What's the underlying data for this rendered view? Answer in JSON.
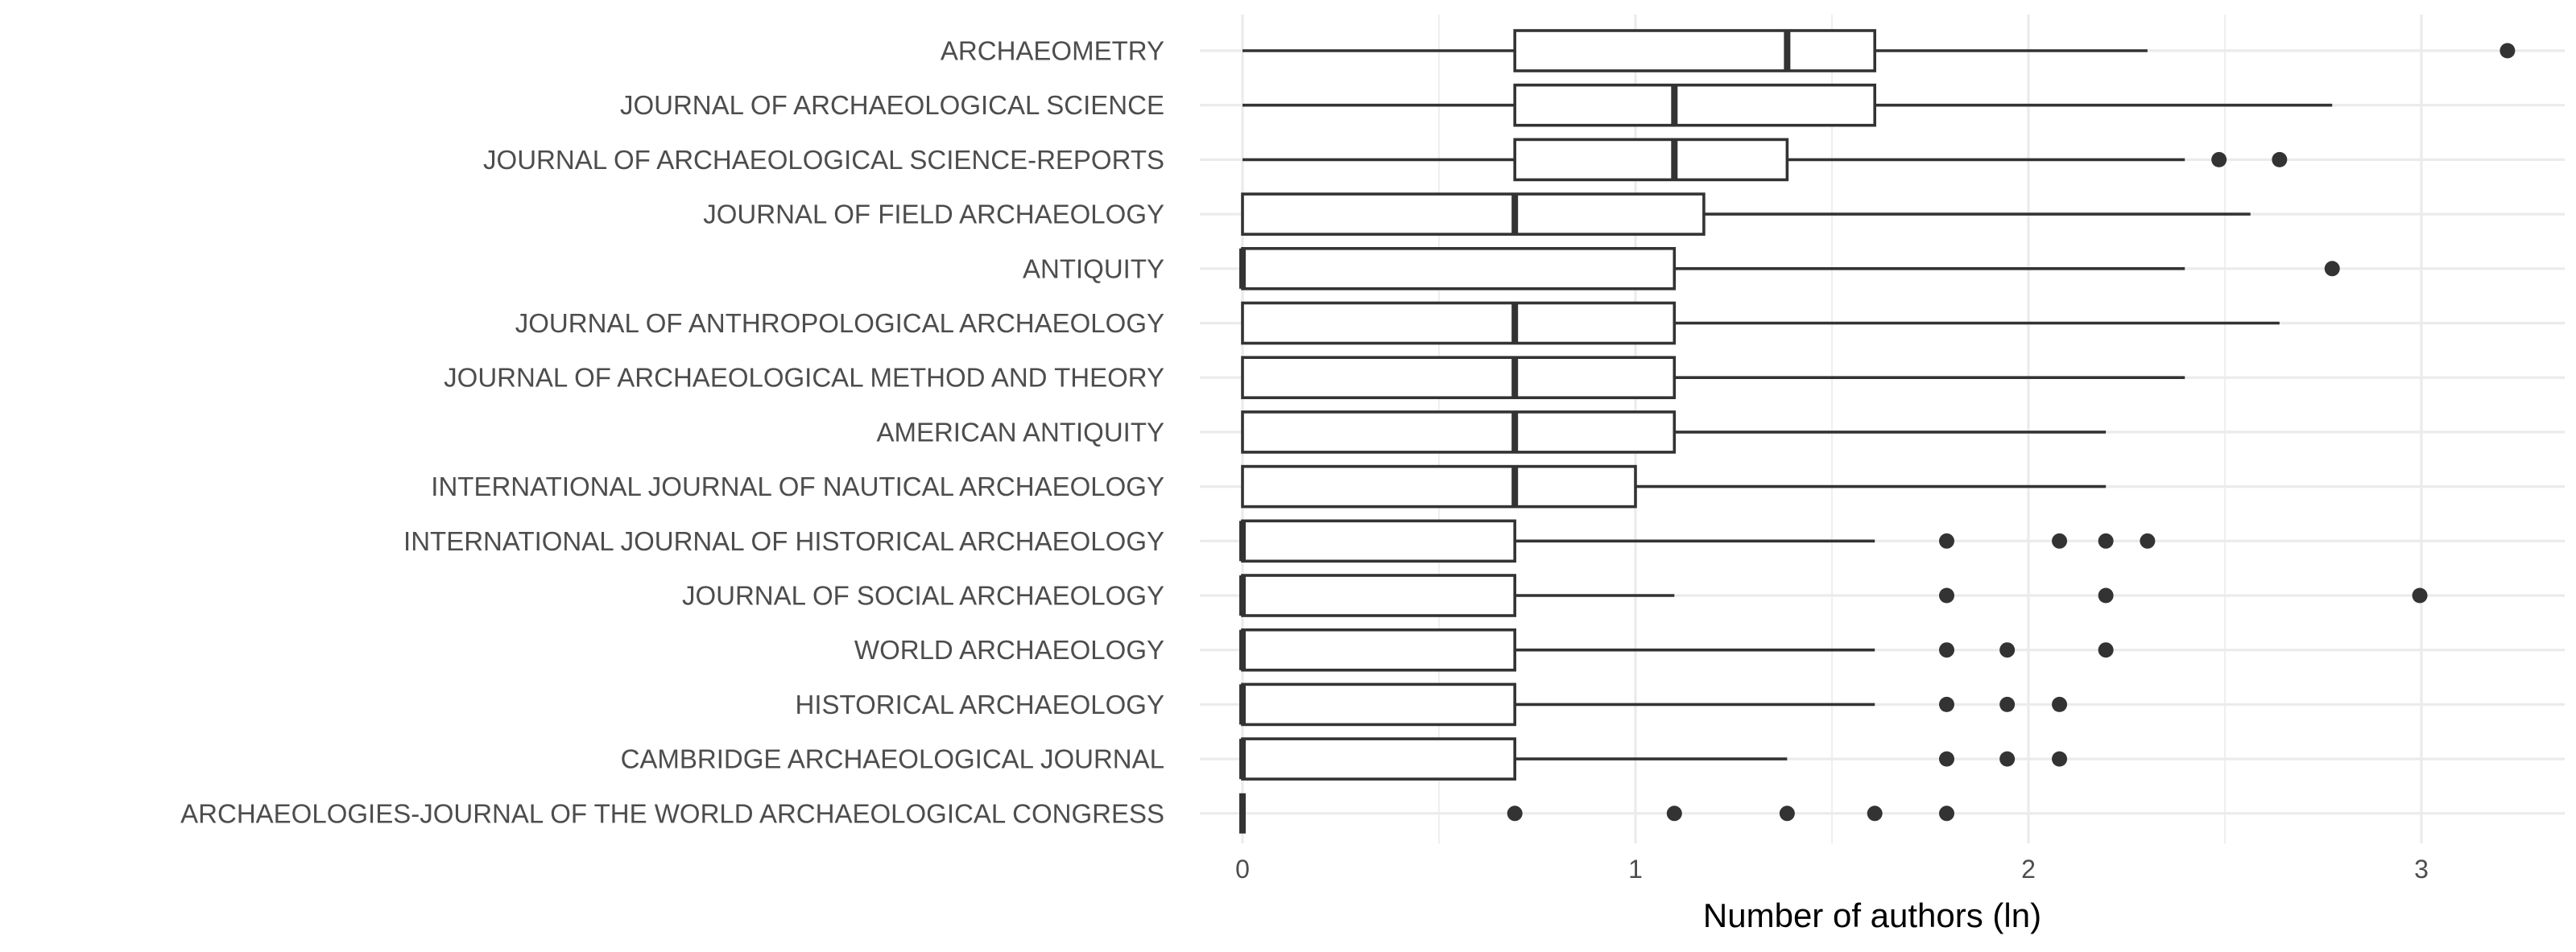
{
  "chart_data": {
    "type": "boxplot",
    "orientation": "horizontal",
    "xlabel": "Number of authors (ln)",
    "ylabel": "",
    "xlim": [
      -0.1,
      3.4
    ],
    "x_ticks": [
      0,
      1,
      2,
      3
    ],
    "x_tick_labels": [
      "0",
      "1",
      "2",
      "3"
    ],
    "grid": true,
    "colors": {
      "box_fill": "#ffffff",
      "box_stroke": "#333333",
      "grid": "#ebebeb",
      "outlier": "#333333"
    },
    "categories": [
      "ARCHAEOMETRY",
      "JOURNAL OF ARCHAEOLOGICAL SCIENCE",
      "JOURNAL OF ARCHAEOLOGICAL SCIENCE-REPORTS",
      "JOURNAL OF FIELD ARCHAEOLOGY",
      "ANTIQUITY",
      "JOURNAL OF ANTHROPOLOGICAL ARCHAEOLOGY",
      "JOURNAL OF ARCHAEOLOGICAL METHOD AND THEORY",
      "AMERICAN ANTIQUITY",
      "INTERNATIONAL JOURNAL OF NAUTICAL ARCHAEOLOGY",
      "INTERNATIONAL JOURNAL OF HISTORICAL ARCHAEOLOGY",
      "JOURNAL OF SOCIAL ARCHAEOLOGY",
      "WORLD ARCHAEOLOGY",
      "HISTORICAL ARCHAEOLOGY",
      "CAMBRIDGE ARCHAEOLOGICAL JOURNAL",
      "ARCHAEOLOGIES-JOURNAL OF THE WORLD ARCHAEOLOGICAL CONGRESS"
    ],
    "boxes": [
      {
        "whisker_low": 0,
        "q1": 0.693,
        "median": 1.386,
        "q3": 1.609,
        "whisker_high": 2.303,
        "outliers": [
          3.219
        ]
      },
      {
        "whisker_low": 0,
        "q1": 0.693,
        "median": 1.099,
        "q3": 1.609,
        "whisker_high": 2.773,
        "outliers": []
      },
      {
        "whisker_low": 0,
        "q1": 0.693,
        "median": 1.099,
        "q3": 1.386,
        "whisker_high": 2.398,
        "outliers": [
          2.485,
          2.639
        ]
      },
      {
        "whisker_low": 0,
        "q1": 0,
        "median": 0.693,
        "q3": 1.174,
        "whisker_high": 2.565,
        "outliers": []
      },
      {
        "whisker_low": 0,
        "q1": 0,
        "median": 0,
        "q3": 1.099,
        "whisker_high": 2.398,
        "outliers": [
          2.773
        ]
      },
      {
        "whisker_low": 0,
        "q1": 0,
        "median": 0.693,
        "q3": 1.099,
        "whisker_high": 2.639,
        "outliers": []
      },
      {
        "whisker_low": 0,
        "q1": 0,
        "median": 0.693,
        "q3": 1.099,
        "whisker_high": 2.398,
        "outliers": []
      },
      {
        "whisker_low": 0,
        "q1": 0,
        "median": 0.693,
        "q3": 1.099,
        "whisker_high": 2.197,
        "outliers": []
      },
      {
        "whisker_low": 0,
        "q1": 0,
        "median": 0.693,
        "q3": 1.0,
        "whisker_high": 2.197,
        "outliers": []
      },
      {
        "whisker_low": 0,
        "q1": 0,
        "median": 0,
        "q3": 0.693,
        "whisker_high": 1.609,
        "outliers": [
          1.792,
          2.079,
          2.197,
          2.303
        ]
      },
      {
        "whisker_low": 0,
        "q1": 0,
        "median": 0,
        "q3": 0.693,
        "whisker_high": 1.099,
        "outliers": [
          1.792,
          2.197,
          2.996
        ]
      },
      {
        "whisker_low": 0,
        "q1": 0,
        "median": 0,
        "q3": 0.693,
        "whisker_high": 1.609,
        "outliers": [
          1.792,
          1.946,
          2.197
        ]
      },
      {
        "whisker_low": 0,
        "q1": 0,
        "median": 0,
        "q3": 0.693,
        "whisker_high": 1.609,
        "outliers": [
          1.792,
          1.946,
          2.079
        ]
      },
      {
        "whisker_low": 0,
        "q1": 0,
        "median": 0,
        "q3": 0.693,
        "whisker_high": 1.386,
        "outliers": [
          1.792,
          1.946,
          2.079
        ]
      },
      {
        "whisker_low": 0,
        "q1": 0,
        "median": 0,
        "q3": 0,
        "whisker_high": 0,
        "outliers": [
          0.693,
          1.099,
          1.386,
          1.609,
          1.792
        ]
      }
    ]
  }
}
